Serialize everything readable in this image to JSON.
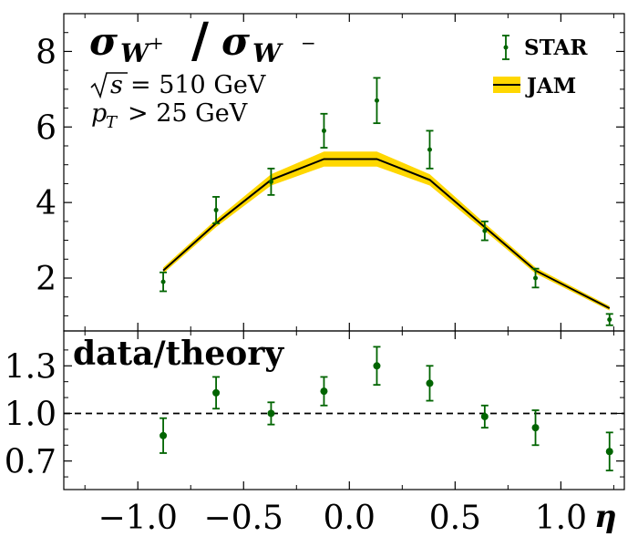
{
  "chart_data": [
    {
      "type": "line",
      "title_main": "σ",
      "title_sub1": "W",
      "title_sup1": "+",
      "title_slash": "/",
      "title_main2": "σ",
      "title_sub2": "W",
      "title_sup2": "−",
      "annotation_sqrt_s": "s",
      "annotation_energy": "= 510 GeV",
      "annotation_pt_symbol": "p",
      "annotation_pt_sub": "T",
      "annotation_pt_cut": "> 25 GeV",
      "legend": [
        {
          "label": "STAR",
          "kind": "errorbar",
          "color": "#006400"
        },
        {
          "label": "JAM",
          "kind": "band-line",
          "color": "#000000",
          "band_color": "#FFD700"
        }
      ],
      "xlim": [
        -1.35,
        1.3
      ],
      "ylim": [
        0.6,
        9.0
      ],
      "yticks": [
        2,
        4,
        6,
        8
      ],
      "ytick_labels": [
        "2",
        "4",
        "6",
        "8"
      ],
      "series": [
        {
          "name": "STAR",
          "type": "errorbar",
          "x": [
            -0.88,
            -0.63,
            -0.37,
            -0.12,
            0.13,
            0.38,
            0.64,
            0.88,
            1.23
          ],
          "y": [
            1.9,
            3.8,
            4.55,
            5.9,
            6.7,
            5.4,
            3.25,
            2.0,
            0.9
          ],
          "yerr": [
            0.25,
            0.35,
            0.35,
            0.45,
            0.6,
            0.5,
            0.25,
            0.25,
            0.15
          ]
        },
        {
          "name": "JAM",
          "type": "line-band",
          "x": [
            -0.88,
            -0.63,
            -0.37,
            -0.12,
            0.13,
            0.38,
            0.64,
            0.88,
            1.23
          ],
          "y": [
            2.2,
            3.45,
            4.6,
            5.15,
            5.15,
            4.6,
            3.35,
            2.2,
            1.2
          ],
          "band": [
            0.08,
            0.1,
            0.15,
            0.2,
            0.2,
            0.15,
            0.1,
            0.08,
            0.06
          ]
        }
      ]
    },
    {
      "type": "scatter",
      "panel_label": "data/theory",
      "xlabel": "η",
      "xlim": [
        -1.35,
        1.3
      ],
      "ylim": [
        0.52,
        1.52
      ],
      "xticks": [
        -1.0,
        -0.5,
        0.0,
        0.5,
        1.0
      ],
      "xtick_labels": [
        "−1.0",
        "−0.5",
        "0.0",
        "0.5",
        "1.0"
      ],
      "yticks": [
        0.7,
        1.0,
        1.3
      ],
      "ytick_labels": [
        "0.7",
        "1.0",
        "1.3"
      ],
      "reference_line": 1.0,
      "series": [
        {
          "name": "STAR",
          "type": "errorbar",
          "color": "#006400",
          "x": [
            -0.88,
            -0.63,
            -0.37,
            -0.12,
            0.13,
            0.38,
            0.64,
            0.88,
            1.23
          ],
          "y": [
            0.86,
            1.13,
            1.0,
            1.14,
            1.3,
            1.19,
            0.98,
            0.91,
            0.76
          ],
          "yerr": [
            0.11,
            0.1,
            0.07,
            0.09,
            0.12,
            0.11,
            0.07,
            0.11,
            0.12
          ]
        }
      ]
    }
  ]
}
